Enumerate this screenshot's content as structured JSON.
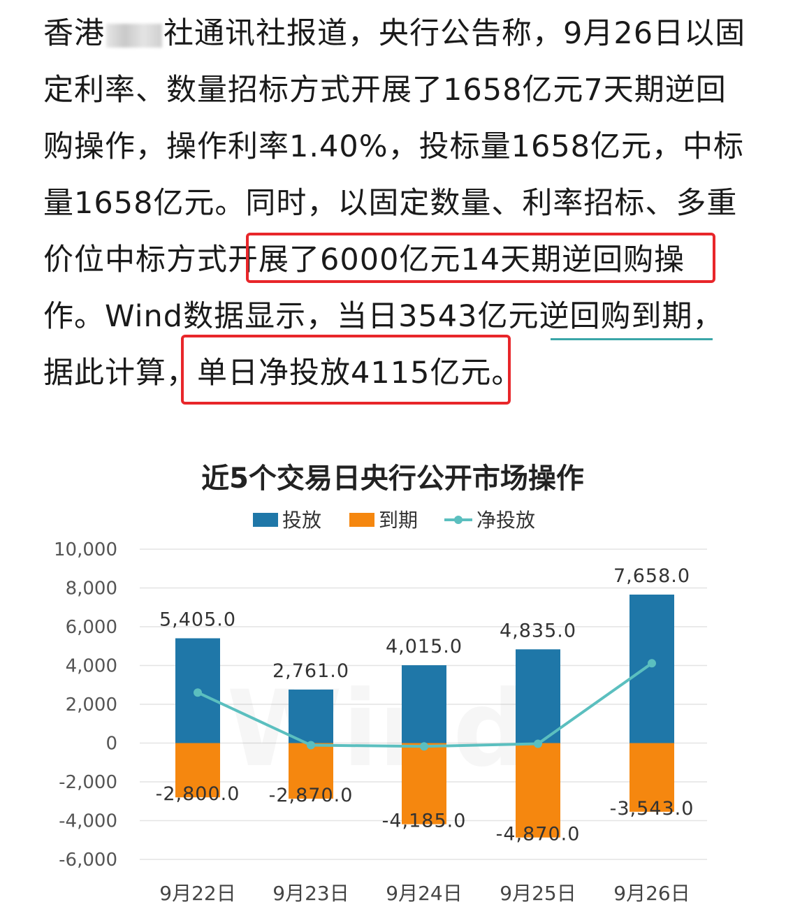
{
  "article": {
    "lines": [
      [
        "香港",
        "",
        "社通讯社报道，央行公告称，9月26日以固"
      ],
      [
        "定利率、数量招标方式开展了1658亿元7天期逆回"
      ],
      [
        "购操作，操作利率1.40%，投标量1658亿元，中标"
      ],
      [
        "量1658亿元。同时，以固定数量、利率招标、多重"
      ],
      [
        "价位中标方式",
        "开展了6000亿元14天期逆回购",
        "操"
      ],
      [
        "作。Wind数据显示，当日3543亿元",
        "逆回购到期",
        "，"
      ],
      [
        "据此计算，",
        "单日净投放4115亿元。"
      ]
    ]
  },
  "chart_data": {
    "type": "bar",
    "title": "近5个交易日央行公开市场操作",
    "categories": [
      "9月22日",
      "9月23日",
      "9月24日",
      "9月25日",
      "9月26日"
    ],
    "series": [
      {
        "name": "投放",
        "type": "bar",
        "color": "#1f77a8",
        "values": [
          5405.0,
          2761.0,
          4015.0,
          4835.0,
          7658.0
        ]
      },
      {
        "name": "到期",
        "type": "bar",
        "color": "#f5870f",
        "values": [
          -2800.0,
          -2870.0,
          -4185.0,
          -4870.0,
          -3543.0
        ]
      },
      {
        "name": "净投放",
        "type": "line",
        "color": "#5bbfbf",
        "values": [
          2605.0,
          -109.0,
          -170.0,
          -35.0,
          4115.0
        ]
      }
    ],
    "data_labels": {
      "投放": [
        "5,405.0",
        "2,761.0",
        "4,015.0",
        "4,835.0",
        "7,658.0"
      ],
      "到期": [
        "-2,800.0",
        "-2,870.0",
        "-4,185.0",
        "-4,870.0",
        "-3,543.0"
      ]
    },
    "y_ticks": [
      10000,
      8000,
      6000,
      4000,
      2000,
      0,
      -2000,
      -4000,
      -6000
    ],
    "y_tick_labels": [
      "10,000",
      "8,000",
      "6,000",
      "4,000",
      "2,000",
      "0",
      "-2,000",
      "-4,000",
      "-6,000"
    ],
    "ylim": [
      -6000,
      10000
    ],
    "grid": true,
    "legend": "top-center",
    "watermark": "Wind"
  }
}
